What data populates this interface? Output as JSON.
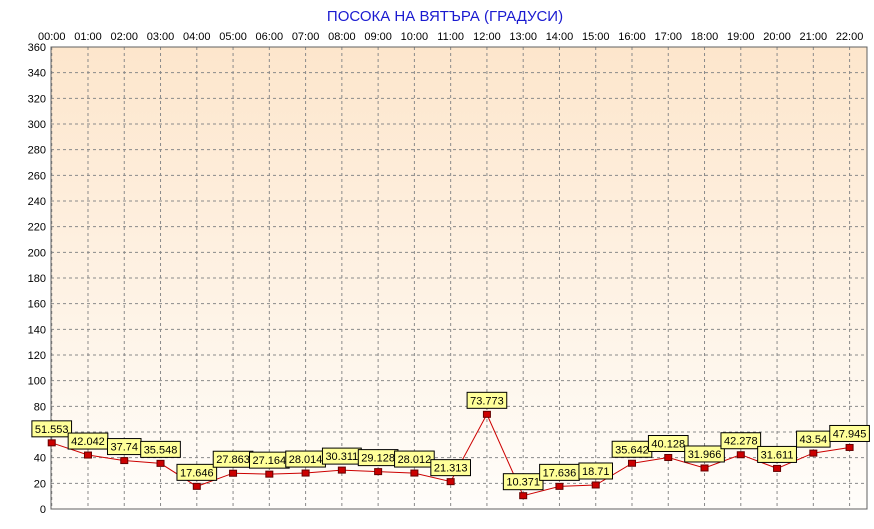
{
  "chart_data": {
    "type": "line",
    "title": "ПОСОКА НА ВЯТЪРА    (ГРАДУСИ)",
    "xlabel": "",
    "ylabel": "",
    "x_ticks": [
      "00:00",
      "01:00",
      "02:00",
      "03:00",
      "04:00",
      "05:00",
      "06:00",
      "07:00",
      "08:00",
      "09:00",
      "10:00",
      "11:00",
      "12:00",
      "13:00",
      "14:00",
      "15:00",
      "16:00",
      "17:00",
      "18:00",
      "19:00",
      "20:00",
      "21:00",
      "22:00"
    ],
    "y_ticks": [
      "0",
      "20",
      "40",
      "60",
      "80",
      "100",
      "120",
      "140",
      "160",
      "180",
      "200",
      "220",
      "240",
      "260",
      "280",
      "300",
      "320",
      "340",
      "360"
    ],
    "ylim": [
      0,
      360
    ],
    "points": [
      {
        "x": 0,
        "y": 51.553,
        "label": "51.553"
      },
      {
        "x": 1,
        "y": 42.042,
        "label": "42.042"
      },
      {
        "x": 2,
        "y": 37.74,
        "label": "37.74"
      },
      {
        "x": 3,
        "y": 35.548,
        "label": "35.548"
      },
      {
        "x": 4,
        "y": 17.646,
        "label": "17.646"
      },
      {
        "x": 5,
        "y": 27.863,
        "label": "27.863"
      },
      {
        "x": 6,
        "y": 27.164,
        "label": "27.164"
      },
      {
        "x": 7,
        "y": 28.014,
        "label": "28.014"
      },
      {
        "x": 8,
        "y": 30.311,
        "label": "30.311"
      },
      {
        "x": 9,
        "y": 29.128,
        "label": "29.128"
      },
      {
        "x": 10,
        "y": 28.012,
        "label": "28.012"
      },
      {
        "x": 11,
        "y": 21.313,
        "label": "21.313"
      },
      {
        "x": 12,
        "y": 73.773,
        "label": "73.773"
      },
      {
        "x": 13,
        "y": 10.371,
        "label": "10.371"
      },
      {
        "x": 14,
        "y": 17.636,
        "label": "17.636"
      },
      {
        "x": 15,
        "y": 18.71,
        "label": "18.71"
      },
      {
        "x": 16,
        "y": 35.642,
        "label": "35.642"
      },
      {
        "x": 17,
        "y": 40.128,
        "label": "40.128"
      },
      {
        "x": 18,
        "y": 31.966,
        "label": "31.966"
      },
      {
        "x": 19,
        "y": 42.278,
        "label": "42.278"
      },
      {
        "x": 20,
        "y": 31.611,
        "label": "31.611"
      },
      {
        "x": 21,
        "y": 43.54,
        "label": "43.54"
      },
      {
        "x": 22,
        "y": 47.945,
        "label": "47.945"
      }
    ],
    "grid": true,
    "legend": "none",
    "colors": {
      "title": "#1a1ad0",
      "line": "#cc0000",
      "marker_fill": "#cc0000",
      "marker_stroke": "#660000",
      "label_fill": "#ffff99",
      "label_stroke": "#000000",
      "grid": "#8a8a8a",
      "bg_top": "#fde6cc",
      "bg_bottom": "#fffdfa"
    }
  }
}
